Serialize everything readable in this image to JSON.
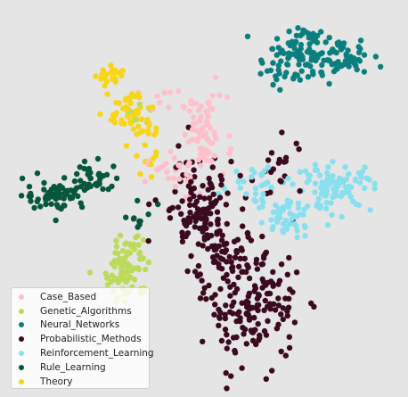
{
  "chart_data": {
    "type": "scatter",
    "xlabel": "",
    "ylabel": "",
    "title": "",
    "grid": false,
    "legend_placement": "bottom-left",
    "xlim": [
      0,
      100
    ],
    "ylim": [
      0,
      100
    ],
    "series": [
      {
        "name": "Case_Based",
        "color": "#ffc0cb",
        "clusters": [
          {
            "cx": 50,
            "cy": 67,
            "sx": 3,
            "sy": 5,
            "n": 70
          },
          {
            "cx": 42,
            "cy": 56,
            "sx": 3.5,
            "sy": 3,
            "n": 25
          },
          {
            "cx": 38,
            "cy": 76,
            "sx": 2,
            "sy": 2,
            "n": 8
          }
        ]
      },
      {
        "name": "Genetic_Algorithms",
        "color": "#bcdb5a",
        "clusters": [
          {
            "cx": 30,
            "cy": 31,
            "sx": 3,
            "sy": 4,
            "n": 75
          },
          {
            "cx": 31,
            "cy": 38,
            "sx": 2,
            "sy": 2,
            "n": 12
          },
          {
            "cx": 35,
            "cy": 74,
            "sx": 3,
            "sy": 2,
            "n": 6
          }
        ]
      },
      {
        "name": "Neural_Networks",
        "color": "#0b7f7f",
        "clusters": [
          {
            "cx": 75,
            "cy": 87,
            "sx": 5,
            "sy": 3.5,
            "n": 110
          },
          {
            "cx": 87,
            "cy": 87,
            "sx": 3.5,
            "sy": 2,
            "n": 40
          },
          {
            "cx": 77,
            "cy": 93,
            "sx": 2,
            "sy": 1.2,
            "n": 15
          }
        ]
      },
      {
        "name": "Probabilistic_Methods",
        "color": "#3b0a1f",
        "clusters": [
          {
            "cx": 48,
            "cy": 48,
            "sx": 5,
            "sy": 7,
            "n": 110
          },
          {
            "cx": 63,
            "cy": 21,
            "sx": 6,
            "sy": 7,
            "n": 150
          },
          {
            "cx": 55,
            "cy": 34,
            "sx": 5,
            "sy": 5,
            "n": 70
          },
          {
            "cx": 70,
            "cy": 57,
            "sx": 3,
            "sy": 5,
            "n": 20
          }
        ]
      },
      {
        "name": "Reinforcement_Learning",
        "color": "#88e0ef",
        "clusters": [
          {
            "cx": 84,
            "cy": 53,
            "sx": 5,
            "sy": 3,
            "n": 100
          },
          {
            "cx": 72,
            "cy": 45,
            "sx": 4,
            "sy": 3,
            "n": 45
          },
          {
            "cx": 64,
            "cy": 54,
            "sx": 4,
            "sy": 2.5,
            "n": 30
          }
        ]
      },
      {
        "name": "Rule_Learning",
        "color": "#08573b",
        "clusters": [
          {
            "cx": 11,
            "cy": 51,
            "sx": 4,
            "sy": 2,
            "n": 60
          },
          {
            "cx": 21,
            "cy": 55,
            "sx": 4,
            "sy": 2,
            "n": 40
          },
          {
            "cx": 33,
            "cy": 45,
            "sx": 2,
            "sy": 2,
            "n": 10
          }
        ]
      },
      {
        "name": "Theory",
        "color": "#f7d617",
        "clusters": [
          {
            "cx": 31,
            "cy": 72,
            "sx": 3,
            "sy": 3.5,
            "n": 55
          },
          {
            "cx": 26,
            "cy": 82,
            "sx": 1.8,
            "sy": 1.5,
            "n": 22
          },
          {
            "cx": 36,
            "cy": 62,
            "sx": 2,
            "sy": 3,
            "n": 14
          }
        ]
      }
    ]
  }
}
